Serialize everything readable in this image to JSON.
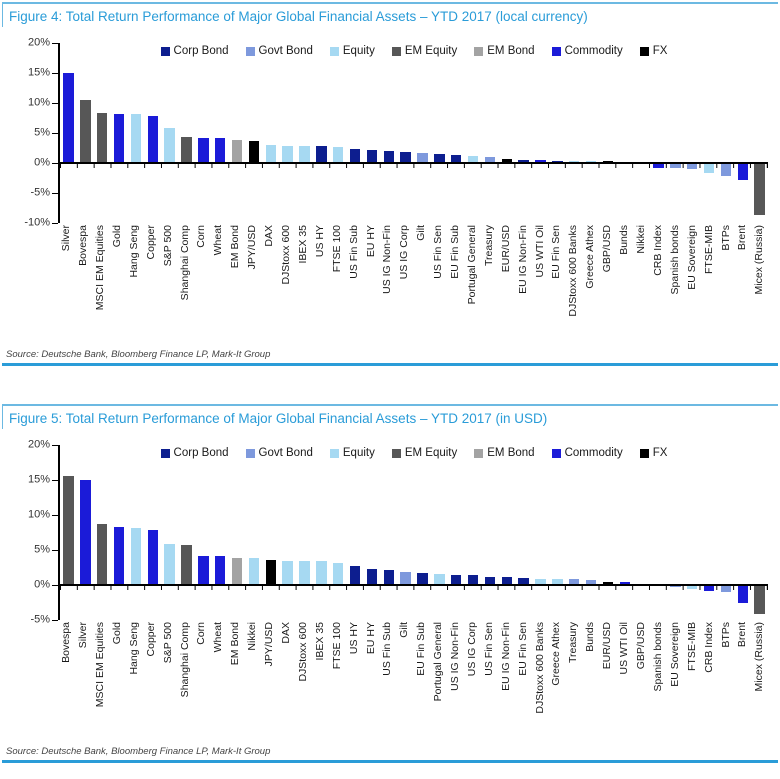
{
  "accent": {
    "title_color": "#2a9cd8",
    "rule_color": "#2a9cd8"
  },
  "chart_data": [
    {
      "type": "bar",
      "title": "Figure 4: Total Return Performance of Major Global Financial Assets – YTD 2017 (local currency)",
      "source": "Source: Deutsche Bank, Bloomberg Finance LP, Mark-It Group",
      "ylim": [
        -10,
        20
      ],
      "grid": false,
      "legend_position": "top-center",
      "yticks": [
        {
          "label": "20%",
          "value": 20
        },
        {
          "label": "15%",
          "value": 15
        },
        {
          "label": "10%",
          "value": 10
        },
        {
          "label": "5%",
          "value": 5
        },
        {
          "label": "0%",
          "value": 0
        },
        {
          "label": "-5%",
          "value": -5
        },
        {
          "label": "-10%",
          "value": -10
        }
      ],
      "legend": [
        {
          "category": "Corp Bond",
          "color": "#0d1e8f"
        },
        {
          "category": "Govt Bond",
          "color": "#7e99dd"
        },
        {
          "category": "Equity",
          "color": "#a6d9f2"
        },
        {
          "category": "EM Equity",
          "color": "#575757"
        },
        {
          "category": "EM Bond",
          "color": "#a3a3a3"
        },
        {
          "category": "Commodity",
          "color": "#1b1bd8"
        },
        {
          "category": "FX",
          "color": "#000000"
        }
      ],
      "points": [
        {
          "label": "Silver",
          "category": "Commodity",
          "value": 15.0
        },
        {
          "label": "Bovespa",
          "category": "EM Equity",
          "value": 10.5
        },
        {
          "label": "MSCI EM Equities",
          "category": "EM Equity",
          "value": 8.4
        },
        {
          "label": "Gold",
          "category": "Commodity",
          "value": 8.2
        },
        {
          "label": "Hang Seng",
          "category": "Equity",
          "value": 8.1
        },
        {
          "label": "Copper",
          "category": "Commodity",
          "value": 7.8
        },
        {
          "label": "S&P 500",
          "category": "Equity",
          "value": 5.8
        },
        {
          "label": "Shanghai Comp",
          "category": "EM Equity",
          "value": 4.4
        },
        {
          "label": "Corn",
          "category": "Commodity",
          "value": 4.2
        },
        {
          "label": "Wheat",
          "category": "Commodity",
          "value": 4.1
        },
        {
          "label": "EM Bond",
          "category": "EM Bond",
          "value": 3.8
        },
        {
          "label": "JPY/USD",
          "category": "FX",
          "value": 3.6
        },
        {
          "label": "DAX",
          "category": "Equity",
          "value": 3.0
        },
        {
          "label": "DJStoxx 600",
          "category": "Equity",
          "value": 2.9
        },
        {
          "label": "IBEX 35",
          "category": "Equity",
          "value": 2.9
        },
        {
          "label": "US HY",
          "category": "Corp Bond",
          "value": 2.8
        },
        {
          "label": "FTSE 100",
          "category": "Equity",
          "value": 2.7
        },
        {
          "label": "US Fin Sub",
          "category": "Corp Bond",
          "value": 2.4
        },
        {
          "label": "EU HY",
          "category": "Corp Bond",
          "value": 2.2
        },
        {
          "label": "US IG Non-Fin",
          "category": "Corp Bond",
          "value": 2.0
        },
        {
          "label": "US IG Corp",
          "category": "Corp Bond",
          "value": 1.8
        },
        {
          "label": "Gilt",
          "category": "Govt Bond",
          "value": 1.7
        },
        {
          "label": "US Fin Sen",
          "category": "Corp Bond",
          "value": 1.5
        },
        {
          "label": "EU Fin Sub",
          "category": "Corp Bond",
          "value": 1.4
        },
        {
          "label": "Portugal General",
          "category": "Equity",
          "value": 1.2
        },
        {
          "label": "Treasury",
          "category": "Govt Bond",
          "value": 1.0
        },
        {
          "label": "EUR/USD",
          "category": "FX",
          "value": 0.6
        },
        {
          "label": "EU IG Non-Fin",
          "category": "Corp Bond",
          "value": 0.5
        },
        {
          "label": "US WTI Oil",
          "category": "Commodity",
          "value": 0.5
        },
        {
          "label": "EU Fin Sen",
          "category": "Corp Bond",
          "value": 0.4
        },
        {
          "label": "DJStoxx 600 Banks",
          "category": "Equity",
          "value": 0.3
        },
        {
          "label": "Greece Athex",
          "category": "Equity",
          "value": 0.3
        },
        {
          "label": "GBP/USD",
          "category": "FX",
          "value": 0.3
        },
        {
          "label": "Bunds",
          "category": "Govt Bond",
          "value": 0.1
        },
        {
          "label": "Nikkei",
          "category": "Equity",
          "value": 0.0
        },
        {
          "label": "CRB Index",
          "category": "Commodity",
          "value": -0.9
        },
        {
          "label": "Spanish bonds",
          "category": "Govt Bond",
          "value": -0.9
        },
        {
          "label": "EU Sovereign",
          "category": "Govt Bond",
          "value": -1.0
        },
        {
          "label": "FTSE-MIB",
          "category": "Equity",
          "value": -1.6
        },
        {
          "label": "BTPs",
          "category": "Govt Bond",
          "value": -2.2
        },
        {
          "label": "Brent",
          "category": "Commodity",
          "value": -2.8
        },
        {
          "label": "Micex (Russia)",
          "category": "EM Equity",
          "value": -8.7
        }
      ]
    },
    {
      "type": "bar",
      "title": "Figure 5: Total Return Performance of Major Global Financial Assets – YTD 2017 (in USD)",
      "source": "Source: Deutsche Bank, Bloomberg Finance LP, Mark-It Group",
      "ylim": [
        -5,
        20
      ],
      "grid": false,
      "legend_position": "top-center",
      "yticks": [
        {
          "label": "20%",
          "value": 20
        },
        {
          "label": "15%",
          "value": 15
        },
        {
          "label": "10%",
          "value": 10
        },
        {
          "label": "5%",
          "value": 5
        },
        {
          "label": "0%",
          "value": 0
        },
        {
          "label": "-5%",
          "value": -5
        }
      ],
      "legend": [
        {
          "category": "Corp Bond",
          "color": "#0d1e8f"
        },
        {
          "category": "Govt Bond",
          "color": "#7e99dd"
        },
        {
          "category": "Equity",
          "color": "#a6d9f2"
        },
        {
          "category": "EM Equity",
          "color": "#575757"
        },
        {
          "category": "EM Bond",
          "color": "#a3a3a3"
        },
        {
          "category": "Commodity",
          "color": "#1b1bd8"
        },
        {
          "category": "FX",
          "color": "#000000"
        }
      ],
      "points": [
        {
          "label": "Bovespa",
          "category": "EM Equity",
          "value": 15.6
        },
        {
          "label": "Silver",
          "category": "Commodity",
          "value": 15.0
        },
        {
          "label": "MSCI EM Equities",
          "category": "EM Equity",
          "value": 8.7
        },
        {
          "label": "Gold",
          "category": "Commodity",
          "value": 8.3
        },
        {
          "label": "Hang Seng",
          "category": "Equity",
          "value": 8.1
        },
        {
          "label": "Copper",
          "category": "Commodity",
          "value": 7.9
        },
        {
          "label": "S&P 500",
          "category": "Equity",
          "value": 5.9
        },
        {
          "label": "Shanghai Comp",
          "category": "EM Equity",
          "value": 5.7
        },
        {
          "label": "Corn",
          "category": "Commodity",
          "value": 4.2
        },
        {
          "label": "Wheat",
          "category": "Commodity",
          "value": 4.1
        },
        {
          "label": "EM Bond",
          "category": "EM Bond",
          "value": 3.9
        },
        {
          "label": "Nikkei",
          "category": "Equity",
          "value": 3.8
        },
        {
          "label": "JPY/USD",
          "category": "FX",
          "value": 3.6
        },
        {
          "label": "DAX",
          "category": "Equity",
          "value": 3.5
        },
        {
          "label": "DJStoxx 600",
          "category": "Equity",
          "value": 3.4
        },
        {
          "label": "IBEX 35",
          "category": "Equity",
          "value": 3.4
        },
        {
          "label": "FTSE 100",
          "category": "Equity",
          "value": 3.2
        },
        {
          "label": "US HY",
          "category": "Corp Bond",
          "value": 2.7
        },
        {
          "label": "EU HY",
          "category": "Corp Bond",
          "value": 2.3
        },
        {
          "label": "US Fin Sub",
          "category": "Corp Bond",
          "value": 2.1
        },
        {
          "label": "Gilt",
          "category": "Govt Bond",
          "value": 1.9
        },
        {
          "label": "EU Fin Sub",
          "category": "Corp Bond",
          "value": 1.7
        },
        {
          "label": "Portugal General",
          "category": "Equity",
          "value": 1.6
        },
        {
          "label": "US IG Non-Fin",
          "category": "Corp Bond",
          "value": 1.5
        },
        {
          "label": "US IG Corp",
          "category": "Corp Bond",
          "value": 1.4
        },
        {
          "label": "US Fin Sen",
          "category": "Corp Bond",
          "value": 1.2
        },
        {
          "label": "EU IG Non-Fin",
          "category": "Corp Bond",
          "value": 1.1
        },
        {
          "label": "EU Fin Sen",
          "category": "Corp Bond",
          "value": 1.0
        },
        {
          "label": "DJStoxx 600 Banks",
          "category": "Equity",
          "value": 0.9
        },
        {
          "label": "Greece Athex",
          "category": "Equity",
          "value": 0.8
        },
        {
          "label": "Treasury",
          "category": "Govt Bond",
          "value": 0.8
        },
        {
          "label": "Bunds",
          "category": "Govt Bond",
          "value": 0.7
        },
        {
          "label": "EUR/USD",
          "category": "FX",
          "value": 0.5
        },
        {
          "label": "US WTI Oil",
          "category": "Commodity",
          "value": 0.5
        },
        {
          "label": "GBP/USD",
          "category": "FX",
          "value": 0.2
        },
        {
          "label": "Spanish bonds",
          "category": "Govt Bond",
          "value": -0.2
        },
        {
          "label": "EU Sovereign",
          "category": "Govt Bond",
          "value": -0.3
        },
        {
          "label": "FTSE-MIB",
          "category": "Equity",
          "value": -0.5
        },
        {
          "label": "CRB Index",
          "category": "Commodity",
          "value": -0.9
        },
        {
          "label": "BTPs",
          "category": "Govt Bond",
          "value": -1.0
        },
        {
          "label": "Brent",
          "category": "Commodity",
          "value": -2.6
        },
        {
          "label": "Micex (Russia)",
          "category": "EM Equity",
          "value": -4.1
        }
      ]
    }
  ]
}
